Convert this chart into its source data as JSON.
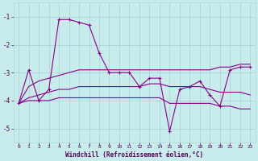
{
  "background_color": "#c8ecec",
  "grid_color": "#b0d8d8",
  "line_color": "#880088",
  "xlim": [
    -0.5,
    23.5
  ],
  "ylim": [
    -5.5,
    -0.5
  ],
  "yticks": [
    -5,
    -4,
    -3,
    -2,
    -1
  ],
  "xticks": [
    0,
    1,
    2,
    3,
    4,
    5,
    6,
    7,
    8,
    9,
    10,
    11,
    12,
    13,
    14,
    15,
    16,
    17,
    18,
    19,
    20,
    21,
    22,
    23
  ],
  "xlabel": "Windchill (Refroidissement éolien,°C)",
  "xlabel_color": "#550055",
  "tick_color": "#550055",
  "series": {
    "main": [
      -4.1,
      -2.9,
      -4.0,
      -3.6,
      -1.1,
      -1.1,
      -1.2,
      -1.3,
      -2.3,
      -3.0,
      -3.0,
      -3.0,
      -3.5,
      -3.2,
      -3.2,
      -5.1,
      -3.6,
      -3.5,
      -3.3,
      -3.8,
      -4.2,
      -2.9,
      -2.8,
      -2.8
    ],
    "min": [
      -4.1,
      -4.0,
      -4.0,
      -4.0,
      -3.9,
      -3.9,
      -3.9,
      -3.9,
      -3.9,
      -3.9,
      -3.9,
      -3.9,
      -3.9,
      -3.9,
      -3.9,
      -4.1,
      -4.1,
      -4.1,
      -4.1,
      -4.1,
      -4.2,
      -4.2,
      -4.3,
      -4.3
    ],
    "max": [
      -4.1,
      -3.5,
      -3.3,
      -3.2,
      -3.1,
      -3.0,
      -2.9,
      -2.9,
      -2.9,
      -2.9,
      -2.9,
      -2.9,
      -2.9,
      -2.9,
      -2.9,
      -2.9,
      -2.9,
      -2.9,
      -2.9,
      -2.9,
      -2.8,
      -2.8,
      -2.7,
      -2.7
    ],
    "avg": [
      -4.1,
      -3.9,
      -3.8,
      -3.7,
      -3.6,
      -3.6,
      -3.5,
      -3.5,
      -3.5,
      -3.5,
      -3.5,
      -3.5,
      -3.5,
      -3.4,
      -3.4,
      -3.5,
      -3.5,
      -3.5,
      -3.5,
      -3.6,
      -3.7,
      -3.7,
      -3.7,
      -3.8
    ]
  }
}
